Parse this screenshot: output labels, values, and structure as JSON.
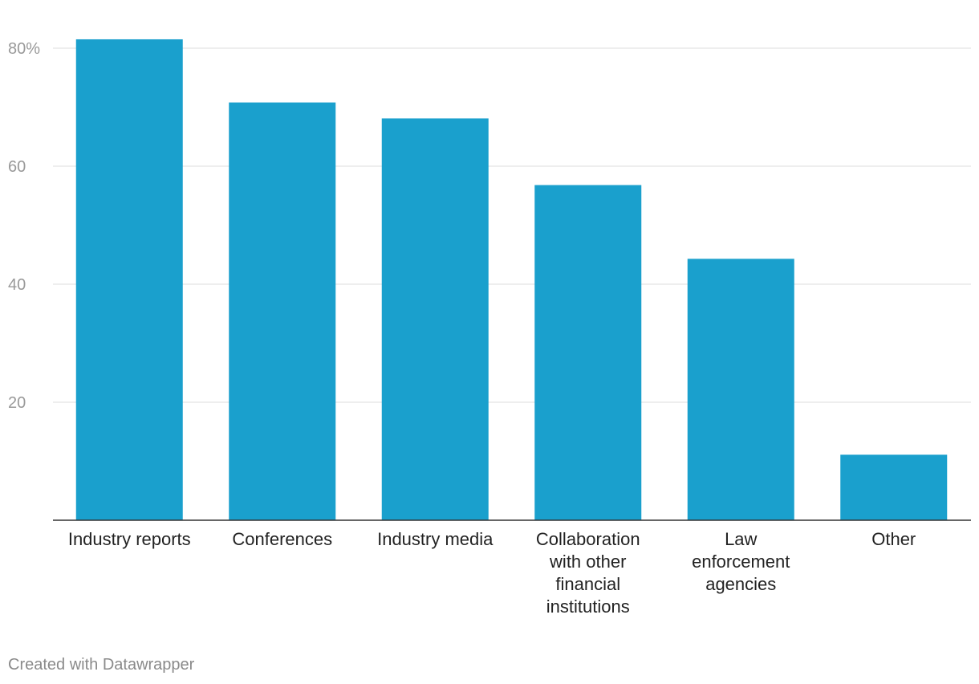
{
  "chart_data": {
    "type": "bar",
    "title": "",
    "xlabel": "",
    "ylabel": "",
    "categories": [
      "Industry reports",
      "Conferences",
      "Industry media",
      "Collaboration with other financial institutions",
      "Law enforcement agencies",
      "Other"
    ],
    "category_lines": [
      [
        "Industry reports"
      ],
      [
        "Conferences"
      ],
      [
        "Industry media"
      ],
      [
        "Collaboration",
        "with other",
        "financial",
        "institutions"
      ],
      [
        "Law",
        "enforcement",
        "agencies"
      ],
      [
        "Other"
      ]
    ],
    "values": [
      81.5,
      70.8,
      68.1,
      56.8,
      44.3,
      11.1
    ],
    "ylim": [
      0,
      80
    ],
    "yticks": [
      20,
      40,
      60,
      80
    ],
    "ytick_labels": [
      "20",
      "40",
      "60",
      "80%"
    ],
    "grid": true,
    "bar_color": "#1aa0cd",
    "grid_color": "#e3e3e3",
    "axis_color": "#333333",
    "tick_label_color": "#999999",
    "category_label_color": "#222222"
  },
  "footer": {
    "credit": "Created with Datawrapper"
  }
}
